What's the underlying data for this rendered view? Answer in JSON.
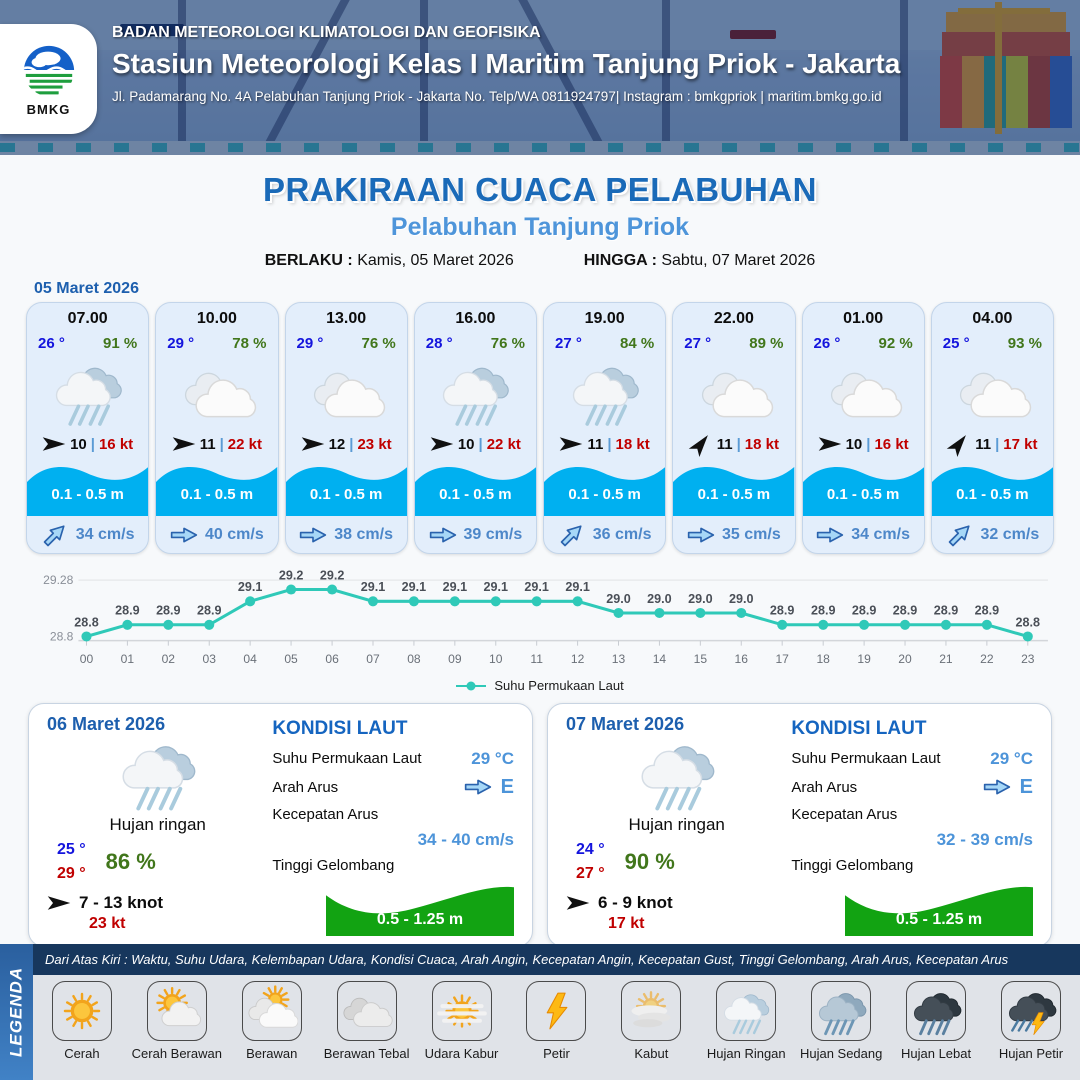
{
  "header": {
    "agency": "BADAN METEOROLOGI KLIMATOLOGI DAN GEOFISIKA",
    "station": "Stasiun Meteorologi Kelas I Maritim Tanjung Priok - Jakarta",
    "address": "Jl. Padamarang No. 4A Pelabuhan Tanjung Priok - Jakarta No. Telp/WA 0811924797| Instagram : bmkgpriok | maritim.bmkg.go.id",
    "logo_text": "BMKG"
  },
  "title": {
    "main": "PRAKIRAAN CUACA PELABUHAN",
    "subtitle": "Pelabuhan Tanjung Priok",
    "valid_from_label": "BERLAKU :",
    "valid_from": "Kamis, 05 Maret 2026",
    "valid_to_label": "HINGGA :",
    "valid_to": "Sabtu, 07 Maret 2026"
  },
  "forecast": {
    "date_label": "05 Maret 2026",
    "wind_separator": "|",
    "cards": [
      {
        "time": "07.00",
        "temp": "26 °",
        "humidity": "91 %",
        "icon": "hujan-ringan",
        "wind_speed": "10",
        "wind_gust": "16 kt",
        "wind_deg": 0,
        "wave": "0.1 - 0.5 m",
        "current": "34 cm/s",
        "current_deg": -45
      },
      {
        "time": "10.00",
        "temp": "29 °",
        "humidity": "78 %",
        "icon": "berawan-putih",
        "wind_speed": "11",
        "wind_gust": "22 kt",
        "wind_deg": 0,
        "wave": "0.1 - 0.5 m",
        "current": "40 cm/s",
        "current_deg": 0
      },
      {
        "time": "13.00",
        "temp": "29 °",
        "humidity": "76 %",
        "icon": "berawan-putih",
        "wind_speed": "12",
        "wind_gust": "23 kt",
        "wind_deg": 0,
        "wave": "0.1 - 0.5 m",
        "current": "38 cm/s",
        "current_deg": 0
      },
      {
        "time": "16.00",
        "temp": "28 °",
        "humidity": "76 %",
        "icon": "hujan-ringan",
        "wind_speed": "10",
        "wind_gust": "22 kt",
        "wind_deg": 0,
        "wave": "0.1 - 0.5 m",
        "current": "39 cm/s",
        "current_deg": 0
      },
      {
        "time": "19.00",
        "temp": "27 °",
        "humidity": "84 %",
        "icon": "hujan-ringan",
        "wind_speed": "11",
        "wind_gust": "18 kt",
        "wind_deg": 0,
        "wave": "0.1 - 0.5 m",
        "current": "36 cm/s",
        "current_deg": -45
      },
      {
        "time": "22.00",
        "temp": "27 °",
        "humidity": "89 %",
        "icon": "berawan-putih",
        "wind_speed": "11",
        "wind_gust": "18 kt",
        "wind_deg": -52,
        "wave": "0.1 - 0.5 m",
        "current": "35 cm/s",
        "current_deg": 0
      },
      {
        "time": "01.00",
        "temp": "26 °",
        "humidity": "92 %",
        "icon": "berawan-putih",
        "wind_speed": "10",
        "wind_gust": "16 kt",
        "wind_deg": 0,
        "wave": "0.1 - 0.5 m",
        "current": "34 cm/s",
        "current_deg": 0
      },
      {
        "time": "04.00",
        "temp": "25 °",
        "humidity": "93 %",
        "icon": "berawan-putih",
        "wind_speed": "11",
        "wind_gust": "17 kt",
        "wind_deg": -52,
        "wave": "0.1 - 0.5 m",
        "current": "32 cm/s",
        "current_deg": -45
      }
    ]
  },
  "chart_data": {
    "type": "line",
    "series_name": "Suhu Permukaan Laut",
    "x": [
      "00",
      "01",
      "02",
      "03",
      "04",
      "05",
      "06",
      "07",
      "08",
      "09",
      "10",
      "11",
      "12",
      "13",
      "14",
      "15",
      "16",
      "17",
      "18",
      "19",
      "20",
      "21",
      "22",
      "23"
    ],
    "values": [
      28.8,
      28.9,
      28.9,
      28.9,
      29.1,
      29.2,
      29.2,
      29.1,
      29.1,
      29.1,
      29.1,
      29.1,
      29.1,
      29.0,
      29.0,
      29.0,
      29.0,
      28.9,
      28.9,
      28.9,
      28.9,
      28.9,
      28.9,
      28.8
    ],
    "ylim": [
      28.8,
      29.28
    ],
    "y_ticks": [
      "29.28",
      "28.8"
    ],
    "line_color": "#2fc9b8",
    "grid": "horizontal-top-only",
    "legend_position": "bottom"
  },
  "daily": [
    {
      "date": "06 Maret 2026",
      "condition": "Hujan ringan",
      "icon": "hujan-ringan",
      "temp_min": "25 °",
      "temp_max": "29 °",
      "humidity": "86 %",
      "wind_range": "7 - 13 knot",
      "wind_deg": 0,
      "gust": "23 kt",
      "sea": {
        "header": "KONDISI LAUT",
        "sst_label": "Suhu Permukaan Laut",
        "sst": "29 °C",
        "current_dir_label": "Arah Arus",
        "current_dir": "E",
        "current_deg": 0,
        "current_speed_label": "Kecepatan Arus",
        "current_speed": "34 - 40 cm/s",
        "wave_label": "Tinggi Gelombang",
        "wave": "0.5 - 1.25 m"
      }
    },
    {
      "date": "07 Maret 2026",
      "condition": "Hujan ringan",
      "icon": "hujan-ringan",
      "temp_min": "24 °",
      "temp_max": "27 °",
      "humidity": "90 %",
      "wind_range": "6 - 9 knot",
      "wind_deg": 0,
      "gust": "17 kt",
      "sea": {
        "header": "KONDISI LAUT",
        "sst_label": "Suhu Permukaan Laut",
        "sst": "29 °C",
        "current_dir_label": "Arah Arus",
        "current_dir": "E",
        "current_deg": 0,
        "current_speed_label": "Kecepatan Arus",
        "current_speed": "32 - 39 cm/s",
        "wave_label": "Tinggi Gelombang",
        "wave": "0.5 - 1.25 m"
      }
    }
  ],
  "legend": {
    "title": "LEGENDA",
    "description": "Dari Atas Kiri : Waktu, Suhu Udara, Kelembapan Udara, Kondisi Cuaca, Arah Angin, Kecepatan Angin, Kecepatan Gust, Tinggi Gelombang, Arah Arus, Kecepatan Arus",
    "items": [
      {
        "label": "Cerah",
        "icon": "cerah"
      },
      {
        "label": "Cerah Berawan",
        "icon": "cerah-berawan"
      },
      {
        "label": "Berawan",
        "icon": "berawan"
      },
      {
        "label": "Berawan Tebal",
        "icon": "berawan-tebal"
      },
      {
        "label": "Udara Kabur",
        "icon": "udara-kabur"
      },
      {
        "label": "Petir",
        "icon": "petir"
      },
      {
        "label": "Kabut",
        "icon": "kabut"
      },
      {
        "label": "Hujan Ringan",
        "icon": "hujan-ringan"
      },
      {
        "label": "Hujan Sedang",
        "icon": "hujan-sedang"
      },
      {
        "label": "Hujan Lebat",
        "icon": "hujan-lebat"
      },
      {
        "label": "Hujan Petir",
        "icon": "hujan-petir"
      }
    ]
  },
  "colors": {
    "title_blue": "#1a6ab8",
    "subtitle_blue": "#4e95da",
    "date_blue": "#1d5fae",
    "temp_blue": "#1414dd",
    "temp_max_red": "#c00000",
    "humidity_green": "#41761b",
    "gust_red": "#c00000",
    "wave_band_blue": "#00b0f0",
    "current_text_blue": "#4d87c9",
    "chart_line_teal": "#2fc9b8",
    "sea_header_blue": "#1565c0",
    "wave_green": "#12a312",
    "legend_bar_navy": "#17375d",
    "legend_strip_blue": "#2e6db4"
  }
}
